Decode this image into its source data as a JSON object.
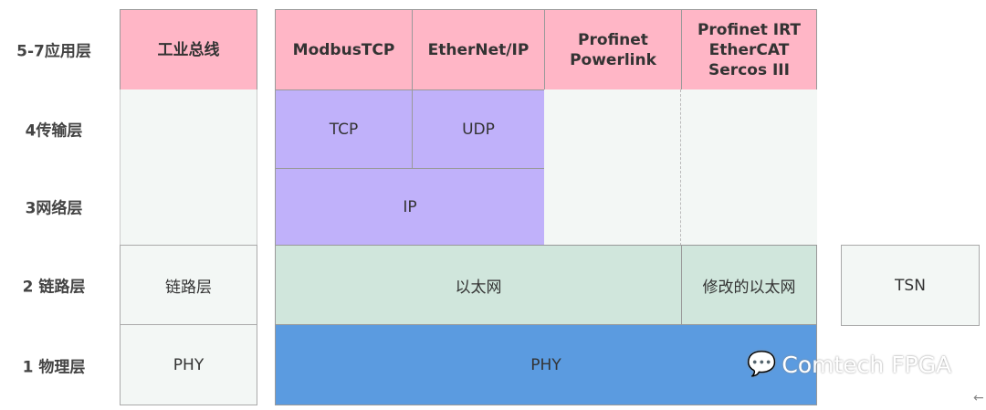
{
  "layers": [
    "5-7应用层",
    "4传输层",
    "3网络层",
    "2 链路层",
    "1 物理层"
  ],
  "fieldbus": {
    "app": "工业总线",
    "link": "链路层",
    "phy": "PHY"
  },
  "app_protocols": [
    "ModbusTCP",
    "EtherNet/IP",
    "Profinet\nPowerlink",
    "Profinet IRT\nEtherCAT\nSercos III"
  ],
  "transport": [
    "TCP",
    "UDP"
  ],
  "network": "IP",
  "link": {
    "ethernet": "以太网",
    "modified": "修改的以太网",
    "tsn": "TSN"
  },
  "phy": "PHY",
  "watermark": "Comtech FPGA",
  "colors": {
    "app": "#ffb6c6",
    "transport": "#c0b1fa",
    "link": "#d0e6dc",
    "phy": "#5b9be0"
  }
}
